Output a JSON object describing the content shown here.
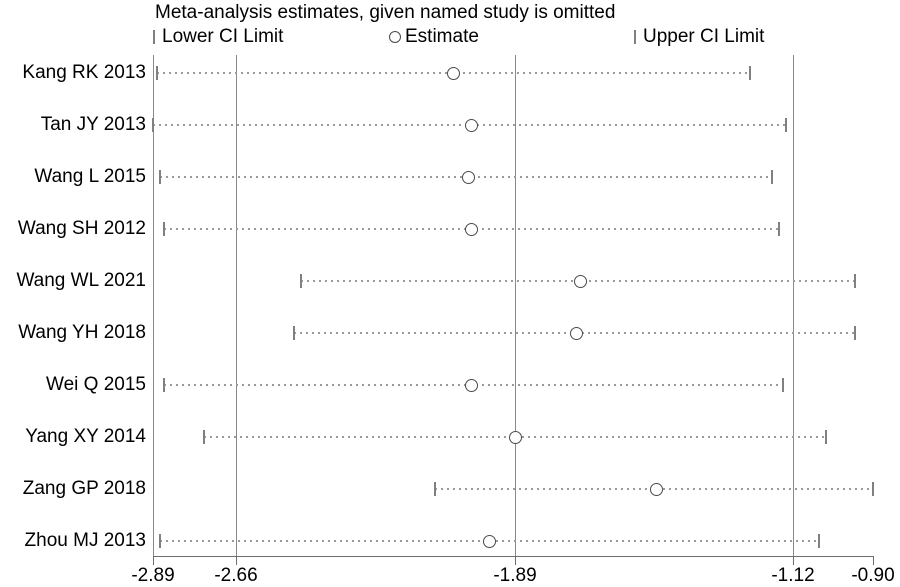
{
  "title": "Meta-analysis estimates, given named study is omitted",
  "legend": {
    "lower": "Lower CI Limit",
    "estimate": "Estimate",
    "upper": "Upper CI Limit"
  },
  "colors": {
    "background": "#ffffff",
    "text": "#000000",
    "reference_line": "#8a8a8a",
    "axis": "#6e6e6e",
    "dotted_ci_line": "#9a9a9a",
    "ci_tick": "#808080",
    "estimate_circle": "#4a4a4a"
  },
  "chart_data": {
    "type": "scatter",
    "subtype": "leave-one-out-forest-plot",
    "title": "Meta-analysis estimates, given named study is omitted",
    "xlabel": "",
    "ylabel": "",
    "x_axis": {
      "min": -2.89,
      "max": -0.9,
      "tick_values": [
        -2.89,
        -2.66,
        -1.89,
        -1.12,
        -0.9
      ],
      "tick_labels": [
        "-2.89",
        "-2.66",
        "-1.89",
        "-1.12",
        "-0.90"
      ]
    },
    "reference_lines": [
      -2.66,
      -1.89,
      -1.12
    ],
    "grid": "off",
    "legend_position": "top",
    "studies": [
      {
        "label": "Kang RK 2013",
        "lower": -2.88,
        "estimate": -2.06,
        "upper": -1.24
      },
      {
        "label": "Tan JY 2013",
        "lower": -2.89,
        "estimate": -2.01,
        "upper": -1.14
      },
      {
        "label": "Wang L 2015",
        "lower": -2.87,
        "estimate": -2.02,
        "upper": -1.18
      },
      {
        "label": "Wang SH 2012",
        "lower": -2.86,
        "estimate": -2.01,
        "upper": -1.16
      },
      {
        "label": "Wang WL 2021",
        "lower": -2.48,
        "estimate": -1.71,
        "upper": -0.95
      },
      {
        "label": "Wang YH 2018",
        "lower": -2.5,
        "estimate": -1.72,
        "upper": -0.95
      },
      {
        "label": "Wei Q 2015",
        "lower": -2.86,
        "estimate": -2.01,
        "upper": -1.15
      },
      {
        "label": "Yang XY 2014",
        "lower": -2.75,
        "estimate": -1.89,
        "upper": -1.03
      },
      {
        "label": "Zang GP 2018",
        "lower": -2.11,
        "estimate": -1.5,
        "upper": -0.9
      },
      {
        "label": "Zhou MJ 2013",
        "lower": -2.87,
        "estimate": -1.96,
        "upper": -1.05
      }
    ]
  }
}
